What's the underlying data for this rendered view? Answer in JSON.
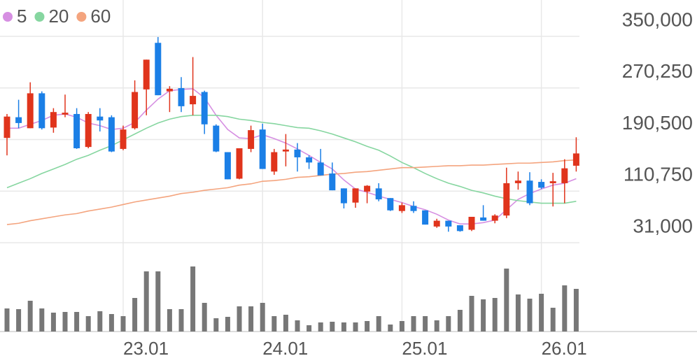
{
  "chart_data": {
    "type": "candlestick",
    "categories": [
      null,
      null,
      null,
      null,
      null,
      null,
      null,
      null,
      null,
      null,
      "23.01",
      null,
      null,
      null,
      null,
      null,
      null,
      null,
      null,
      null,
      null,
      null,
      "24.01",
      null,
      null,
      null,
      null,
      null,
      null,
      null,
      null,
      null,
      null,
      null,
      "25.01",
      null,
      null,
      null,
      null,
      null,
      null,
      null,
      null,
      null,
      null,
      null,
      "26.01",
      null,
      null,
      null
    ],
    "open": [
      193000,
      225000,
      208000,
      262000,
      209000,
      229000,
      230000,
      179000,
      226000,
      225000,
      176000,
      208000,
      268000,
      340000,
      265000,
      270000,
      245000,
      264000,
      212000,
      171000,
      130000,
      176000,
      206000,
      141000,
      172000,
      175000,
      163000,
      155000,
      138000,
      115000,
      93000,
      110000,
      115000,
      100000,
      80000,
      88000,
      81000,
      56000,
      65000,
      58000,
      51000,
      70000,
      65000,
      73000,
      123000,
      127000,
      125000,
      123000,
      123000,
      150000
    ],
    "high": [
      230000,
      252000,
      279000,
      265000,
      239000,
      260000,
      239000,
      233000,
      239000,
      228000,
      212000,
      282000,
      314000,
      349000,
      273000,
      287000,
      318000,
      266000,
      214000,
      171000,
      177000,
      212000,
      215000,
      176000,
      199000,
      185000,
      166000,
      176000,
      155000,
      115000,
      115000,
      120000,
      123000,
      100000,
      93000,
      95000,
      81000,
      68000,
      65000,
      58000,
      71000,
      89000,
      75000,
      147000,
      141000,
      140000,
      129000,
      139000,
      160000,
      194000
    ],
    "low": [
      166000,
      208000,
      208000,
      206000,
      201000,
      225000,
      176000,
      177000,
      203000,
      171000,
      174000,
      206000,
      228000,
      259000,
      233000,
      233000,
      228000,
      199000,
      171000,
      129000,
      129000,
      171000,
      145000,
      136000,
      149000,
      141000,
      145000,
      135000,
      112000,
      84000,
      85000,
      92000,
      95000,
      80000,
      77000,
      77000,
      59000,
      54000,
      48000,
      48000,
      49000,
      65000,
      61000,
      69000,
      113000,
      89000,
      114000,
      87000,
      92000,
      141000
    ],
    "close": [
      226000,
      216000,
      262000,
      208000,
      233000,
      232000,
      177000,
      230000,
      220000,
      172000,
      206000,
      264000,
      314000,
      259000,
      269000,
      242000,
      258000,
      214000,
      172000,
      129000,
      177000,
      205000,
      145000,
      171000,
      175000,
      163000,
      155000,
      135000,
      112000,
      92000,
      115000,
      119000,
      98000,
      81000,
      89000,
      80000,
      59000,
      65000,
      56000,
      49000,
      71000,
      65000,
      73000,
      123000,
      127000,
      92000,
      116000,
      126000,
      146000,
      169000
    ],
    "up_color": "#e0341c",
    "down_color": "#1b7fe6",
    "series": [
      {
        "name": "5",
        "color": "#d68fe2",
        "values": [
          208000,
          208000,
          214000,
          220000,
          228000,
          230000,
          225000,
          216000,
          212000,
          206000,
          208000,
          217000,
          236000,
          253000,
          266000,
          268000,
          269000,
          255000,
          228000,
          206000,
          193000,
          192000,
          198000,
          192000,
          185000,
          176000,
          166000,
          155000,
          145000,
          128000,
          114000,
          109000,
          103000,
          98000,
          93000,
          87000,
          82000,
          75000,
          66000,
          60000,
          60000,
          62000,
          66000,
          82000,
          98000,
          107000,
          114000,
          120000,
          123000,
          130000
        ]
      },
      {
        "name": "20",
        "color": "#86d6a0",
        "values": [
          116000,
          123000,
          130000,
          138000,
          145000,
          152000,
          160000,
          166000,
          174000,
          181000,
          190000,
          199000,
          208000,
          216000,
          222000,
          226000,
          228000,
          228000,
          228000,
          226000,
          222000,
          220000,
          217000,
          215000,
          212000,
          209000,
          208000,
          204000,
          199000,
          193000,
          187000,
          180000,
          174000,
          165000,
          155000,
          147000,
          138000,
          130000,
          123000,
          118000,
          112000,
          108000,
          103000,
          99000,
          96000,
          94000,
          92000,
          92000,
          92000,
          95000
        ]
      },
      {
        "name": "60",
        "color": "#f4a47e",
        "values": [
          59000,
          61000,
          65000,
          68000,
          71000,
          74000,
          76000,
          80000,
          83000,
          86000,
          90000,
          94000,
          97000,
          100000,
          103000,
          107000,
          109000,
          112000,
          114000,
          116000,
          120000,
          122000,
          126000,
          127000,
          129000,
          132000,
          133000,
          135000,
          137000,
          138000,
          140000,
          141000,
          143000,
          145000,
          147000,
          147000,
          148000,
          149000,
          150000,
          150000,
          151000,
          151000,
          152000,
          153000,
          154000,
          154000,
          155000,
          156000,
          158000,
          159000
        ]
      }
    ],
    "volume": {
      "color": "#777777",
      "values": [
        33,
        32,
        44,
        33,
        27,
        28,
        28,
        22,
        29,
        25,
        22,
        48,
        86,
        86,
        32,
        32,
        93,
        41,
        19,
        21,
        36,
        36,
        41,
        22,
        24,
        16,
        9,
        13,
        14,
        13,
        13,
        15,
        22,
        10,
        15,
        22,
        22,
        16,
        22,
        31,
        51,
        46,
        48,
        90,
        53,
        47,
        54,
        34,
        66,
        61
      ]
    },
    "volume_ylim": [
      0,
      100
    ],
    "ylim": [
      31000,
      350000
    ],
    "yticks": [
      {
        "value": 350000,
        "label": "350,000"
      },
      {
        "value": 270250,
        "label": "270,250"
      },
      {
        "value": 190500,
        "label": "190,500"
      },
      {
        "value": 110750,
        "label": "110,750"
      },
      {
        "value": 31000,
        "label": "31,000"
      }
    ],
    "grid": true
  }
}
